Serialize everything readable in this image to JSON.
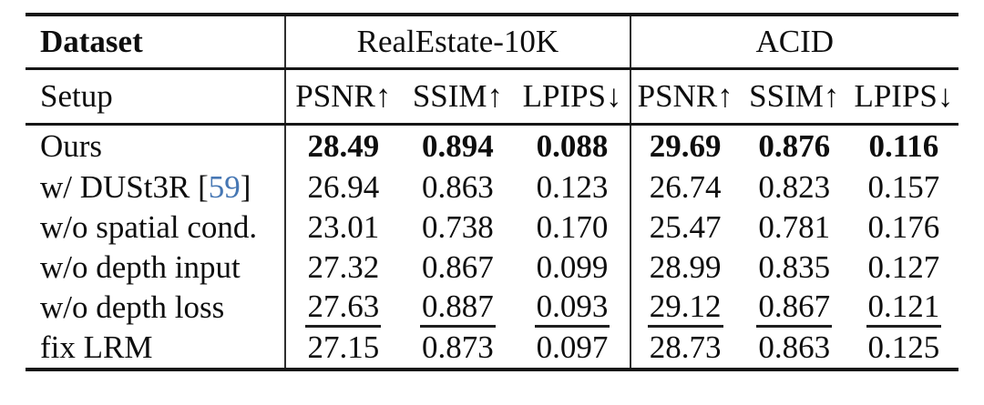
{
  "colors": {
    "text": "#0e0e0e",
    "rule": "#161616",
    "separator": "#2e2e2e",
    "citation": "#4677b4",
    "background": "#ffffff"
  },
  "table": {
    "dataset_label": "Dataset",
    "setup_label": "Setup",
    "groups": [
      {
        "name": "RealEstate-10K",
        "metrics": [
          "PSNR↑",
          "SSIM↑",
          "LPIPS↓"
        ]
      },
      {
        "name": "ACID",
        "metrics": [
          "PSNR↑",
          "SSIM↑",
          "LPIPS↓"
        ]
      }
    ],
    "rows": [
      {
        "label_parts": [
          {
            "text": "Ours"
          }
        ],
        "emphasis": "bold",
        "values": [
          "28.49",
          "0.894",
          "0.088",
          "29.69",
          "0.876",
          "0.116"
        ]
      },
      {
        "label_parts": [
          {
            "text": "w/ DUSt3R ["
          },
          {
            "text": "59",
            "citation": true
          },
          {
            "text": "]"
          }
        ],
        "emphasis": "none",
        "values": [
          "26.94",
          "0.863",
          "0.123",
          "26.74",
          "0.823",
          "0.157"
        ]
      },
      {
        "label_parts": [
          {
            "text": "w/o spatial cond."
          }
        ],
        "emphasis": "none",
        "values": [
          "23.01",
          "0.738",
          "0.170",
          "25.47",
          "0.781",
          "0.176"
        ]
      },
      {
        "label_parts": [
          {
            "text": "w/o depth input"
          }
        ],
        "emphasis": "none",
        "values": [
          "27.32",
          "0.867",
          "0.099",
          "28.99",
          "0.835",
          "0.127"
        ]
      },
      {
        "label_parts": [
          {
            "text": "w/o depth loss"
          }
        ],
        "emphasis": "underline",
        "values": [
          "27.63",
          "0.887",
          "0.093",
          "29.12",
          "0.867",
          "0.121"
        ]
      },
      {
        "label_parts": [
          {
            "text": "fix LRM"
          }
        ],
        "emphasis": "none",
        "values": [
          "27.15",
          "0.873",
          "0.097",
          "28.73",
          "0.863",
          "0.125"
        ]
      }
    ]
  }
}
